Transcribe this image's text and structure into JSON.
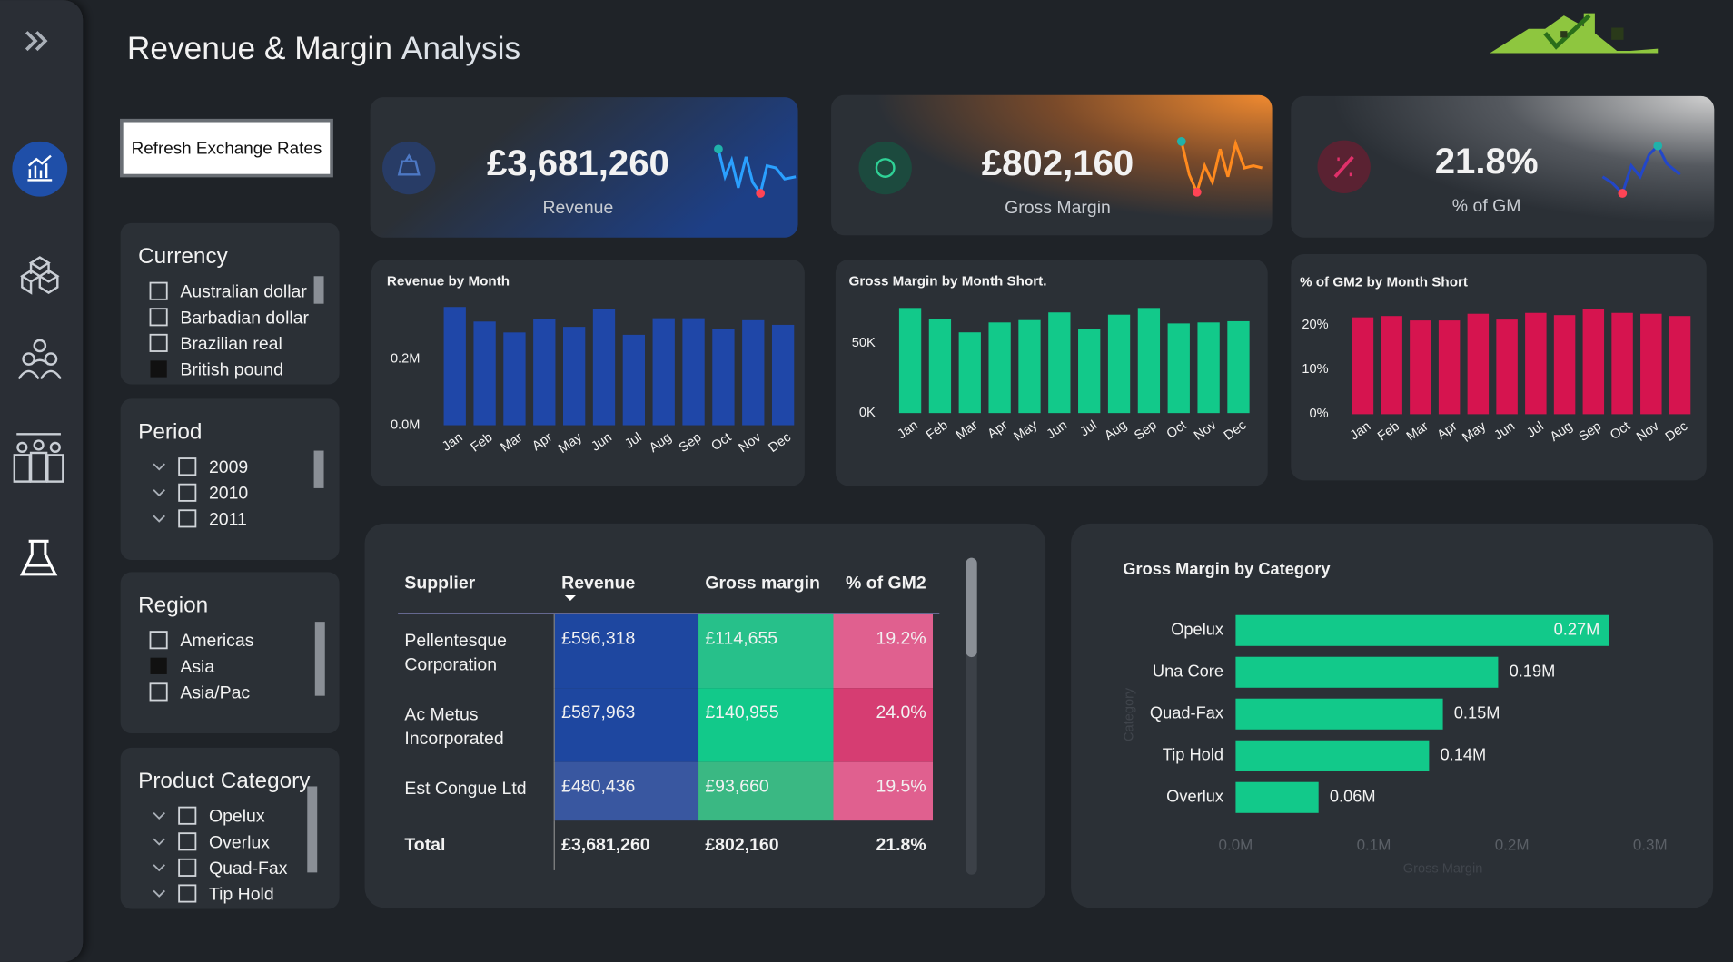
{
  "header": {
    "title": "Revenue & Margin",
    "subtitle": "Analysis"
  },
  "refresh_button": "Refresh Exchange Rates",
  "filters": [
    {
      "title": "Currency",
      "expandable": false,
      "options": [
        {
          "label": "Australian dollar",
          "checked": false
        },
        {
          "label": "Barbadian dollar",
          "checked": false
        },
        {
          "label": "Brazilian real",
          "checked": false
        },
        {
          "label": "British pound",
          "checked": true
        }
      ]
    },
    {
      "title": "Period",
      "expandable": true,
      "options": [
        {
          "label": "2009",
          "checked": false
        },
        {
          "label": "2010",
          "checked": false
        },
        {
          "label": "2011",
          "checked": false
        }
      ]
    },
    {
      "title": "Region",
      "expandable": false,
      "options": [
        {
          "label": "Americas",
          "checked": false
        },
        {
          "label": "Asia",
          "checked": true
        },
        {
          "label": "Asia/Pac",
          "checked": false
        }
      ]
    },
    {
      "title": "Product Category",
      "expandable": true,
      "options": [
        {
          "label": "Opelux",
          "checked": false
        },
        {
          "label": "Overlux",
          "checked": false
        },
        {
          "label": "Quad-Fax",
          "checked": false
        },
        {
          "label": "Tip Hold",
          "checked": false
        }
      ]
    }
  ],
  "kpis": [
    {
      "value": "£3,681,260",
      "label": "Revenue"
    },
    {
      "value": "£802,160",
      "label": "Gross Margin"
    },
    {
      "value": "21.8%",
      "label": "% of GM"
    }
  ],
  "charts": [
    {
      "type": "bar",
      "title": "Revenue by Month",
      "categories": [
        "Jan",
        "Feb",
        "Mar",
        "Apr",
        "May",
        "Jun",
        "Jul",
        "Aug",
        "Sep",
        "Oct",
        "Nov",
        "Dec"
      ],
      "values": [
        357000,
        313000,
        280000,
        320000,
        297000,
        350000,
        273000,
        323000,
        323000,
        290000,
        317000,
        303000
      ],
      "color": "#1f47a8",
      "ylim": [
        0,
        370000
      ],
      "yticks": [
        {
          "value": 0,
          "label": "0.0M"
        },
        {
          "value": 200000,
          "label": "0.2M"
        }
      ]
    },
    {
      "type": "bar",
      "title": "Gross Margin by Month Short.",
      "categories": [
        "Jan",
        "Feb",
        "Mar",
        "Apr",
        "May",
        "Jun",
        "Jul",
        "Aug",
        "Sep",
        "Oct",
        "Nov",
        "Dec"
      ],
      "values": [
        75400,
        67500,
        57900,
        65000,
        66700,
        72200,
        60300,
        70600,
        75400,
        64300,
        65000,
        65900
      ],
      "color": "#12c98a",
      "ylim": [
        0,
        80000
      ],
      "yticks": [
        {
          "value": 0,
          "label": "0K"
        },
        {
          "value": 50000,
          "label": "50K"
        }
      ]
    },
    {
      "type": "bar",
      "title": "% of GM2 by Month Short",
      "categories": [
        "Jan",
        "Feb",
        "Mar",
        "Apr",
        "May",
        "Jun",
        "Jul",
        "Aug",
        "Sep",
        "Oct",
        "Nov",
        "Dec"
      ],
      "values": [
        21.7,
        22,
        21,
        21,
        22.5,
        21.2,
        22.7,
        22.2,
        23.5,
        22.7,
        22.5,
        22
      ],
      "color": "#d6144f",
      "ylim": [
        0,
        24
      ],
      "yticks": [
        {
          "value": 0,
          "label": "0%"
        },
        {
          "value": 10,
          "label": "10%"
        },
        {
          "value": 20,
          "label": "20%"
        }
      ]
    },
    {
      "type": "hbar",
      "title": "Gross Margin by Category",
      "categories": [
        "Opelux",
        "Una Core",
        "Quad-Fax",
        "Tip Hold",
        "Overlux"
      ],
      "values": [
        270000,
        190000,
        150000,
        140000,
        60000
      ],
      "value_labels": [
        "0.27M",
        "0.19M",
        "0.15M",
        "0.14M",
        "0.06M"
      ],
      "color": "#12c98a",
      "xlim": [
        0,
        300000
      ],
      "xticks": [
        {
          "value": 0,
          "label": "0.0M"
        },
        {
          "value": 100000,
          "label": "0.1M"
        },
        {
          "value": 200000,
          "label": "0.2M"
        },
        {
          "value": 300000,
          "label": "0.3M"
        }
      ],
      "x_label": "Gross Margin",
      "y_label": "Category"
    }
  ],
  "table": {
    "columns": [
      "Supplier",
      "Revenue",
      "Gross margin",
      "% of GM2"
    ],
    "rows": [
      [
        "Pellentesque Corporation",
        "£596,318",
        "£114,655",
        "19.2%"
      ],
      [
        "Ac Metus Incorporated",
        "£587,963",
        "£140,955",
        "24.0%"
      ],
      [
        "Est Congue Ltd",
        "£480,436",
        "£93,660",
        "19.5%"
      ]
    ],
    "total": [
      "Total",
      "£3,681,260",
      "£802,160",
      "21.8%"
    ]
  }
}
